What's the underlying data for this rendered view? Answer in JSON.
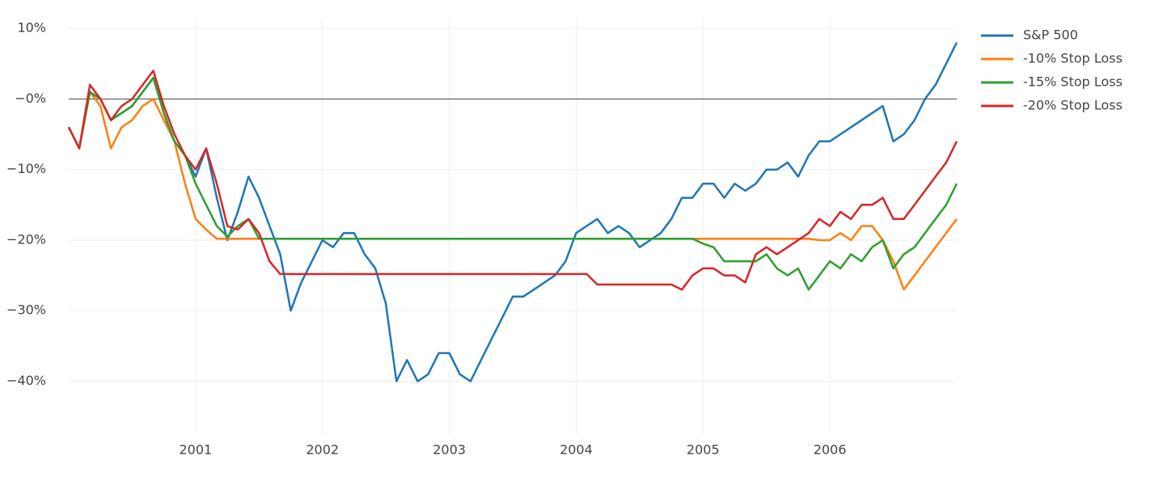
{
  "chart_data": {
    "type": "line",
    "x": [
      2000,
      2000.083,
      2000.167,
      2000.25,
      2000.333,
      2000.417,
      2000.5,
      2000.583,
      2000.667,
      2000.75,
      2000.833,
      2000.917,
      2001,
      2001.083,
      2001.167,
      2001.25,
      2001.333,
      2001.417,
      2001.5,
      2001.583,
      2001.667,
      2001.75,
      2001.833,
      2001.917,
      2002,
      2002.083,
      2002.167,
      2002.25,
      2002.333,
      2002.417,
      2002.5,
      2002.583,
      2002.667,
      2002.75,
      2002.833,
      2002.917,
      2003,
      2003.083,
      2003.167,
      2003.25,
      2003.333,
      2003.417,
      2003.5,
      2003.583,
      2003.667,
      2003.75,
      2003.833,
      2003.917,
      2004,
      2004.083,
      2004.167,
      2004.25,
      2004.333,
      2004.417,
      2004.5,
      2004.583,
      2004.667,
      2004.75,
      2004.833,
      2004.917,
      2005,
      2005.083,
      2005.167,
      2005.25,
      2005.333,
      2005.417,
      2005.5,
      2005.583,
      2005.667,
      2005.75,
      2005.833,
      2005.917,
      2006,
      2006.083,
      2006.167,
      2006.25,
      2006.333,
      2006.417,
      2006.5,
      2006.583,
      2006.667,
      2006.75,
      2006.833,
      2006.917,
      2007
    ],
    "series": [
      {
        "name": "S&P 500",
        "color": "#1f77b4",
        "values": [
          -4,
          -7,
          1,
          0,
          -3,
          -2,
          -1,
          1,
          3,
          -2,
          -6,
          -8,
          -11,
          -7,
          -14,
          -20,
          -16,
          -11,
          -14,
          -18,
          -22,
          -30,
          -26,
          -23,
          -20,
          -21,
          -19,
          -19,
          -22,
          -24,
          -29,
          -40,
          -37,
          -40,
          -39,
          -36,
          -36,
          -39,
          -40,
          -37,
          -34,
          -31,
          -28,
          -28,
          -27,
          -26,
          -25,
          -23,
          -19,
          -18,
          -17,
          -19,
          -18,
          -19,
          -21,
          -20,
          -19,
          -17,
          -14,
          -14,
          -12,
          -12,
          -14,
          -12,
          -13,
          -12,
          -10,
          -10,
          -9,
          -11,
          -8,
          -6,
          -6,
          -5,
          -4,
          -3,
          -2,
          -1,
          -6,
          -5,
          -3,
          0,
          2,
          5,
          8
        ]
      },
      {
        "name": "-10% Stop Loss",
        "color": "#ff7f0e",
        "values": [
          -4,
          -7,
          1,
          -1,
          -7,
          -4,
          -3,
          -1,
          0,
          -3,
          -6,
          -12,
          -17,
          -18.5,
          -19.8,
          -19.8,
          -19.8,
          -19.8,
          -19.8,
          -19.8,
          -19.8,
          -19.8,
          -19.8,
          -19.8,
          -19.8,
          -19.8,
          -19.8,
          -19.8,
          -19.8,
          -19.8,
          -19.8,
          -19.8,
          -19.8,
          -19.8,
          -19.8,
          -19.8,
          -19.8,
          -19.8,
          -19.8,
          -19.8,
          -19.8,
          -19.8,
          -19.8,
          -19.8,
          -19.8,
          -19.8,
          -19.8,
          -19.8,
          -19.8,
          -19.8,
          -19.8,
          -19.8,
          -19.8,
          -19.8,
          -19.8,
          -19.8,
          -19.8,
          -19.8,
          -19.8,
          -19.8,
          -19.8,
          -19.8,
          -19.8,
          -19.8,
          -19.8,
          -19.8,
          -19.8,
          -19.8,
          -19.8,
          -19.8,
          -19.8,
          -20,
          -20,
          -19,
          -20,
          -18,
          -18,
          -20,
          -23,
          -27,
          -25,
          -23,
          -21,
          -19,
          -17
        ]
      },
      {
        "name": "-15% Stop Loss",
        "color": "#2ca02c",
        "values": [
          -4,
          -7,
          1,
          0,
          -3,
          -2,
          -1,
          1,
          3,
          -2,
          -6,
          -8,
          -12,
          -15,
          -18,
          -19.5,
          -18,
          -17,
          -19.8,
          -19.8,
          -19.8,
          -19.8,
          -19.8,
          -19.8,
          -19.8,
          -19.8,
          -19.8,
          -19.8,
          -19.8,
          -19.8,
          -19.8,
          -19.8,
          -19.8,
          -19.8,
          -19.8,
          -19.8,
          -19.8,
          -19.8,
          -19.8,
          -19.8,
          -19.8,
          -19.8,
          -19.8,
          -19.8,
          -19.8,
          -19.8,
          -19.8,
          -19.8,
          -19.8,
          -19.8,
          -19.8,
          -19.8,
          -19.8,
          -19.8,
          -19.8,
          -19.8,
          -19.8,
          -19.8,
          -19.8,
          -19.8,
          -20.5,
          -21,
          -23,
          -23,
          -23,
          -23,
          -22,
          -24,
          -25,
          -24,
          -27,
          -25,
          -23,
          -24,
          -22,
          -23,
          -21,
          -20,
          -24,
          -22,
          -21,
          -19,
          -17,
          -15,
          -12
        ]
      },
      {
        "name": "-20% Stop Loss",
        "color": "#d62728",
        "values": [
          -4,
          -7,
          2,
          0,
          -3,
          -1,
          0,
          2,
          4,
          -1,
          -5,
          -8,
          -10,
          -7,
          -12,
          -18,
          -18.5,
          -17,
          -19,
          -23,
          -24.8,
          -24.8,
          -24.8,
          -24.8,
          -24.8,
          -24.8,
          -24.8,
          -24.8,
          -24.8,
          -24.8,
          -24.8,
          -24.8,
          -24.8,
          -24.8,
          -24.8,
          -24.8,
          -24.8,
          -24.8,
          -24.8,
          -24.8,
          -24.8,
          -24.8,
          -24.8,
          -24.8,
          -24.8,
          -24.8,
          -24.8,
          -24.8,
          -24.8,
          -24.8,
          -26.3,
          -26.3,
          -26.3,
          -26.3,
          -26.3,
          -26.3,
          -26.3,
          -26.3,
          -27,
          -25,
          -24,
          -24,
          -25,
          -25,
          -26,
          -22,
          -21,
          -22,
          -21,
          -20,
          -19,
          -17,
          -18,
          -16,
          -17,
          -15,
          -15,
          -14,
          -17,
          -17,
          -15,
          -13,
          -11,
          -9,
          -6
        ]
      }
    ],
    "xlim": [
      2000,
      2007
    ],
    "xticks": [
      2001,
      2002,
      2003,
      2004,
      2005,
      2006
    ],
    "ylim": [
      -47.5,
      11.5
    ],
    "yticks": [
      {
        "value": 10,
        "label": "10%"
      },
      {
        "value": 0,
        "label": "−0%"
      },
      {
        "value": -10,
        "label": "−10%"
      },
      {
        "value": -20,
        "label": "−20%"
      },
      {
        "value": -30,
        "label": "−30%"
      },
      {
        "value": -40,
        "label": "−40%"
      }
    ],
    "grid": true,
    "legend": "top-right"
  }
}
